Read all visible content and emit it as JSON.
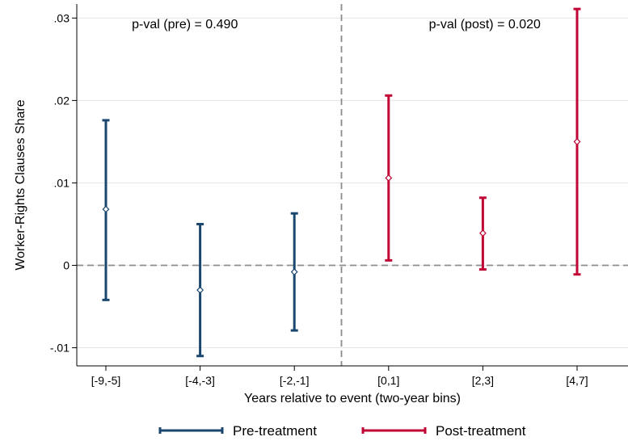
{
  "chart_data": {
    "type": "scatter",
    "subtype": "coefficient-plot-with-confidence-intervals",
    "xlabel": "Years relative to event (two-year bins)",
    "ylabel": "Worker-Rights Clauses Share",
    "categories": [
      "[-9,-5]",
      "[-4,-3]",
      "[-2,-1]",
      "[0,1]",
      "[2,3]",
      "[4,7]"
    ],
    "ylim": [
      -0.0122,
      0.0317
    ],
    "yticks": [
      {
        "value": -0.01,
        "label": "-.01"
      },
      {
        "value": 0,
        "label": "0"
      },
      {
        "value": 0.01,
        "label": ".01"
      },
      {
        "value": 0.02,
        "label": ".02"
      },
      {
        "value": 0.03,
        "label": ".03"
      }
    ],
    "grid": "horizontal",
    "reference_lines": {
      "horizontal_at": 0,
      "vertical_between": [
        "[-2,-1]",
        "[0,1]"
      ],
      "style": "dashed"
    },
    "annotations": [
      {
        "text": "p-val (pre) = 0.490",
        "panel": "pre"
      },
      {
        "text": "p-val (post) = 0.020",
        "panel": "post"
      }
    ],
    "series": [
      {
        "name": "Pre-treatment",
        "color": "#1a476f",
        "points": [
          {
            "category": "[-9,-5]",
            "estimate": 0.0068,
            "ci_low": -0.0042,
            "ci_high": 0.0176
          },
          {
            "category": "[-4,-3]",
            "estimate": -0.003,
            "ci_low": -0.011,
            "ci_high": 0.005
          },
          {
            "category": "[-2,-1]",
            "estimate": -0.0008,
            "ci_low": -0.0079,
            "ci_high": 0.0063
          }
        ]
      },
      {
        "name": "Post-treatment",
        "color": "#c10534",
        "points": [
          {
            "category": "[0,1]",
            "estimate": 0.0106,
            "ci_low": 0.0006,
            "ci_high": 0.0206
          },
          {
            "category": "[2,3]",
            "estimate": 0.0039,
            "ci_low": -0.0005,
            "ci_high": 0.0082
          },
          {
            "category": "[4,7]",
            "estimate": 0.015,
            "ci_low": -0.0011,
            "ci_high": 0.0311
          }
        ]
      }
    ],
    "legend": {
      "placement": "bottom-center"
    }
  }
}
